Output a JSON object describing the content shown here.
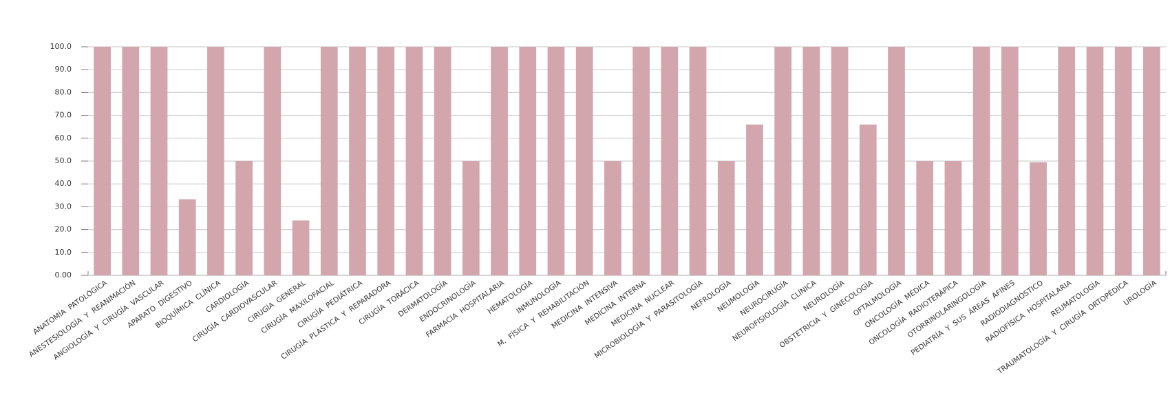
{
  "chart_data": {
    "type": "bar",
    "categories": [
      "ANATOMÍA  PATOLÓGICA",
      "ANESTESIOLOGÍA  Y  REANIMACIÓN",
      "ANGIOLOGÍA  Y  CIRUGÍA  VASCULAR",
      "APARATO  DIGESTIVO",
      "BIOQUÍMICA  CLÍNICA",
      "CARDIOLOGÍA",
      "CIRUGÍA  CARDIOVASCULAR",
      "CIRUGÍA  GENERAL",
      "CIRUGÍA  MAXILOFACIAL",
      "CIRUGÍA  PEDIÁTRICA",
      "CIRUGÍA  PLÁSTICA  Y  REPARADORA",
      "CIRUGÍA  TORÁCICA",
      "DERMATOLOGÍA",
      "ENDOCRINOLOGÍA",
      "FARMACIA  HOSPITALARIA",
      "HEMATOLOGÍA",
      "INMUNOLOGÍA",
      "M.  FÍSICA  Y  REHABILITACIÓN",
      "MEDICINA  INTENSIVA",
      "MEDICINA  INTERNA",
      "MEDICINA  NUCLEAR",
      "MICROBIOLOGÍA  Y  PARASITOLOGÍA",
      "NEFROLOGÍA",
      "NEUMOLOGÍA",
      "NEUROCIRUGÍA",
      "NEUROFISIOLOGÍA  CLÍNICA",
      "NEUROLOGÍA",
      "OBSTETRICIA  Y  GINECOLOGÍA",
      "OFTALMOLOGÍA",
      "ONCOLOGÍA  MÉDICA",
      "ONCOLOGÍA  RADIOTERÁPICA",
      "OTORRINOLARINGOLOGÍA",
      "PEDIATRÍA  Y  SUS  ÁREAS  AFINES",
      "RADIODIAGNÓSTICO",
      "RADIOFÍSICA  HOSPITALARIA",
      "REUMATOLOGÍA",
      "TRAUMATOLOGÍA  Y  CIRUGÍA  ORTOPÉDICA",
      "UROLOGÍA"
    ],
    "values": [
      100,
      100,
      100,
      33.3,
      100,
      50,
      100,
      24,
      100,
      100,
      100,
      100,
      100,
      50,
      100,
      100,
      100,
      100,
      50,
      100,
      100,
      100,
      50,
      66,
      100,
      100,
      100,
      66,
      100,
      50,
      50,
      100,
      100,
      49.5,
      100,
      100,
      100,
      100
    ],
    "color": "#d3a6ae",
    "ylim": [
      0,
      100
    ],
    "yticks": [
      {
        "value": 0,
        "label": "0.00"
      },
      {
        "value": 10,
        "label": "10.0"
      },
      {
        "value": 20,
        "label": "20.0"
      },
      {
        "value": 30,
        "label": "30.0"
      },
      {
        "value": 40,
        "label": "40.0"
      },
      {
        "value": 50,
        "label": "50.0"
      },
      {
        "value": 60,
        "label": "60.0"
      },
      {
        "value": 70,
        "label": "70.0"
      },
      {
        "value": 80,
        "label": "80.0"
      },
      {
        "value": 90,
        "label": "90.0"
      },
      {
        "value": 100,
        "label": "100.0"
      }
    ],
    "grid": true
  }
}
